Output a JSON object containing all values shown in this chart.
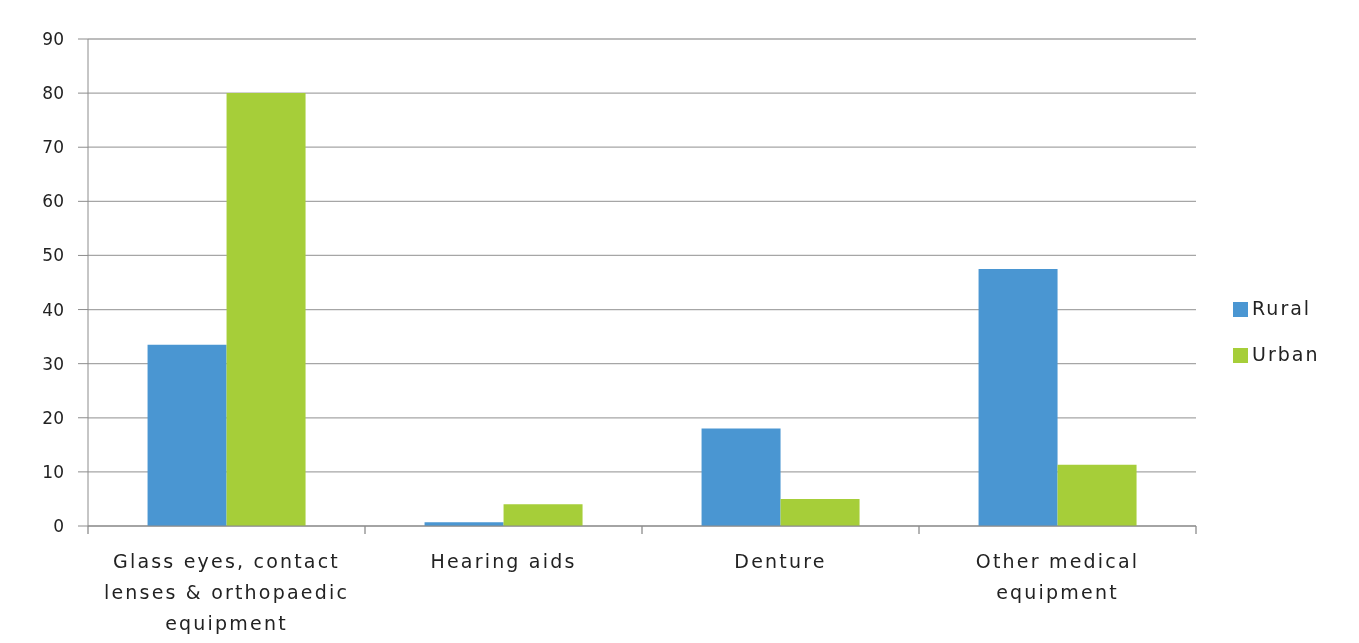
{
  "chart_data": {
    "type": "bar",
    "categories": [
      "Glass eyes, contact lenses & orthopaedic equipment",
      "Hearing aids",
      "Denture",
      "Other medical equipment"
    ],
    "series": [
      {
        "name": "Rural",
        "color": "#4a96d2",
        "values": [
          33.5,
          0.7,
          18,
          47.5
        ]
      },
      {
        "name": "Urban",
        "color": "#a6ce39",
        "values": [
          80,
          4,
          5,
          11.3
        ]
      }
    ],
    "ylim": [
      0,
      90
    ],
    "yticks": [
      0,
      10,
      20,
      30,
      40,
      50,
      60,
      70,
      80,
      90
    ],
    "grid": "y",
    "legend": "right"
  }
}
